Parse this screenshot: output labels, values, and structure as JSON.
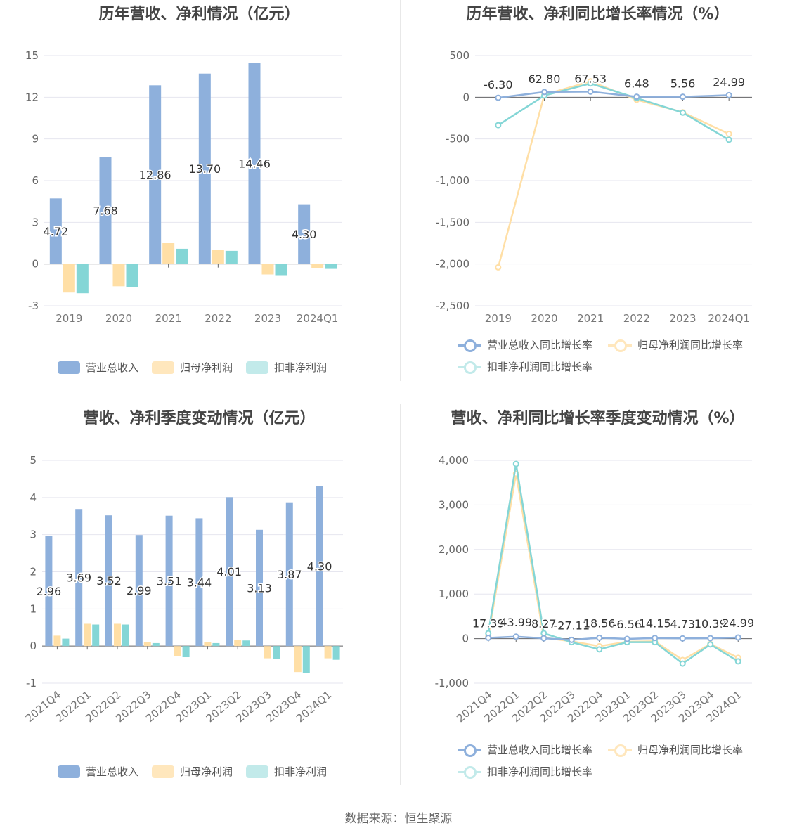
{
  "source": "数据来源：恒生聚源",
  "colors": {
    "revenue": "#8eb0dc",
    "net_profit": "#ffdfa6",
    "deducted_profit": "#84d6d6"
  },
  "legend": {
    "bar": [
      "营业总收入",
      "归母净利润",
      "扣非净利润"
    ],
    "line": [
      "营业总收入同比增长率",
      "归母净利润同比增长率",
      "扣非净利润同比增长率"
    ]
  },
  "chart_data": [
    {
      "id": "annual-amounts",
      "type": "bar",
      "title": "历年营收、净利情况（亿元）",
      "categories": [
        "2019",
        "2020",
        "2021",
        "2022",
        "2023",
        "2024Q1"
      ],
      "series": [
        {
          "name": "营业总收入",
          "values": [
            4.72,
            7.68,
            12.86,
            13.7,
            14.46,
            4.3
          ]
        },
        {
          "name": "归母净利润",
          "values": [
            -2.05,
            -1.6,
            1.5,
            1.0,
            -0.75,
            -0.3
          ]
        },
        {
          "name": "扣非净利润",
          "values": [
            -2.1,
            -1.65,
            1.1,
            0.95,
            -0.8,
            -0.35
          ]
        }
      ],
      "labels": [
        "4.72",
        "7.68",
        "12.86",
        "13.70",
        "14.46",
        "4.30"
      ],
      "yticks": [
        "15",
        "12",
        "9",
        "6",
        "3",
        "0",
        "-3"
      ],
      "ylim": [
        -3,
        15
      ]
    },
    {
      "id": "annual-growth",
      "type": "line",
      "title": "历年营收、净利同比增长率情况（%）",
      "categories": [
        "2019",
        "2020",
        "2021",
        "2022",
        "2023",
        "2024Q1"
      ],
      "series": [
        {
          "name": "营业总收入同比增长率",
          "values": [
            -6.3,
            62.8,
            67.53,
            6.48,
            5.56,
            24.99
          ]
        },
        {
          "name": "归母净利润同比增长率",
          "values": [
            -2040,
            30,
            190,
            -30,
            -180,
            -440
          ]
        },
        {
          "name": "扣非净利润同比增长率",
          "values": [
            -335,
            20,
            165,
            -10,
            -185,
            -510
          ]
        }
      ],
      "labels": [
        "-6.30",
        "62.80",
        "67.53",
        "6.48",
        "5.56",
        "24.99"
      ],
      "yticks": [
        "500",
        "0",
        "-500",
        "-1,000",
        "-1,500",
        "-2,000",
        "-2,500"
      ],
      "ylim": [
        -2500,
        500
      ]
    },
    {
      "id": "quarterly-amounts",
      "type": "bar",
      "title": "营收、净利季度变动情况（亿元）",
      "categories": [
        "2021Q4",
        "2022Q1",
        "2022Q2",
        "2022Q3",
        "2022Q4",
        "2023Q1",
        "2023Q2",
        "2023Q3",
        "2023Q4",
        "2024Q1"
      ],
      "series": [
        {
          "name": "营业总收入",
          "values": [
            2.96,
            3.69,
            3.52,
            2.99,
            3.51,
            3.44,
            4.01,
            3.13,
            3.87,
            4.3
          ]
        },
        {
          "name": "归母净利润",
          "values": [
            0.28,
            0.6,
            0.6,
            0.1,
            -0.28,
            0.1,
            0.17,
            -0.33,
            -0.7,
            -0.33
          ]
        },
        {
          "name": "扣非净利润",
          "values": [
            0.2,
            0.58,
            0.58,
            0.08,
            -0.3,
            0.08,
            0.15,
            -0.35,
            -0.73,
            -0.37
          ]
        }
      ],
      "labels": [
        "2.96",
        "3.69",
        "3.52",
        "2.99",
        "3.51",
        "3.44",
        "4.01",
        "3.13",
        "3.87",
        "4.30"
      ],
      "yticks": [
        "5",
        "4",
        "3",
        "2",
        "1",
        "0",
        "-1"
      ],
      "ylim": [
        -1,
        5
      ]
    },
    {
      "id": "quarterly-growth",
      "type": "line",
      "title": "营收、净利同比增长率季度变动情况（%）",
      "categories": [
        "2021Q4",
        "2022Q1",
        "2022Q2",
        "2022Q3",
        "2022Q4",
        "2023Q1",
        "2023Q2",
        "2023Q3",
        "2023Q4",
        "2024Q1"
      ],
      "series": [
        {
          "name": "营业总收入同比增长率",
          "values": [
            17.39,
            43.99,
            8.27,
            -27.11,
            18.56,
            -6.56,
            14.15,
            4.73,
            10.39,
            24.99
          ]
        },
        {
          "name": "归母净利润同比增长率",
          "values": [
            50,
            3700,
            20,
            -60,
            -170,
            -70,
            -60,
            -480,
            -120,
            -430
          ]
        },
        {
          "name": "扣非净利润同比增长率",
          "values": [
            120,
            3920,
            120,
            -80,
            -240,
            -80,
            -80,
            -560,
            -130,
            -510
          ]
        }
      ],
      "labels": [
        "17.39",
        "43.99",
        "8.27",
        "-27.11",
        "18.56",
        "-6.56",
        "14.15",
        "4.73",
        "10.39",
        "24.99"
      ],
      "yticks": [
        "4,000",
        "3,000",
        "2,000",
        "1,000",
        "0",
        "-1,000"
      ],
      "ylim": [
        -1000,
        4000
      ]
    }
  ]
}
